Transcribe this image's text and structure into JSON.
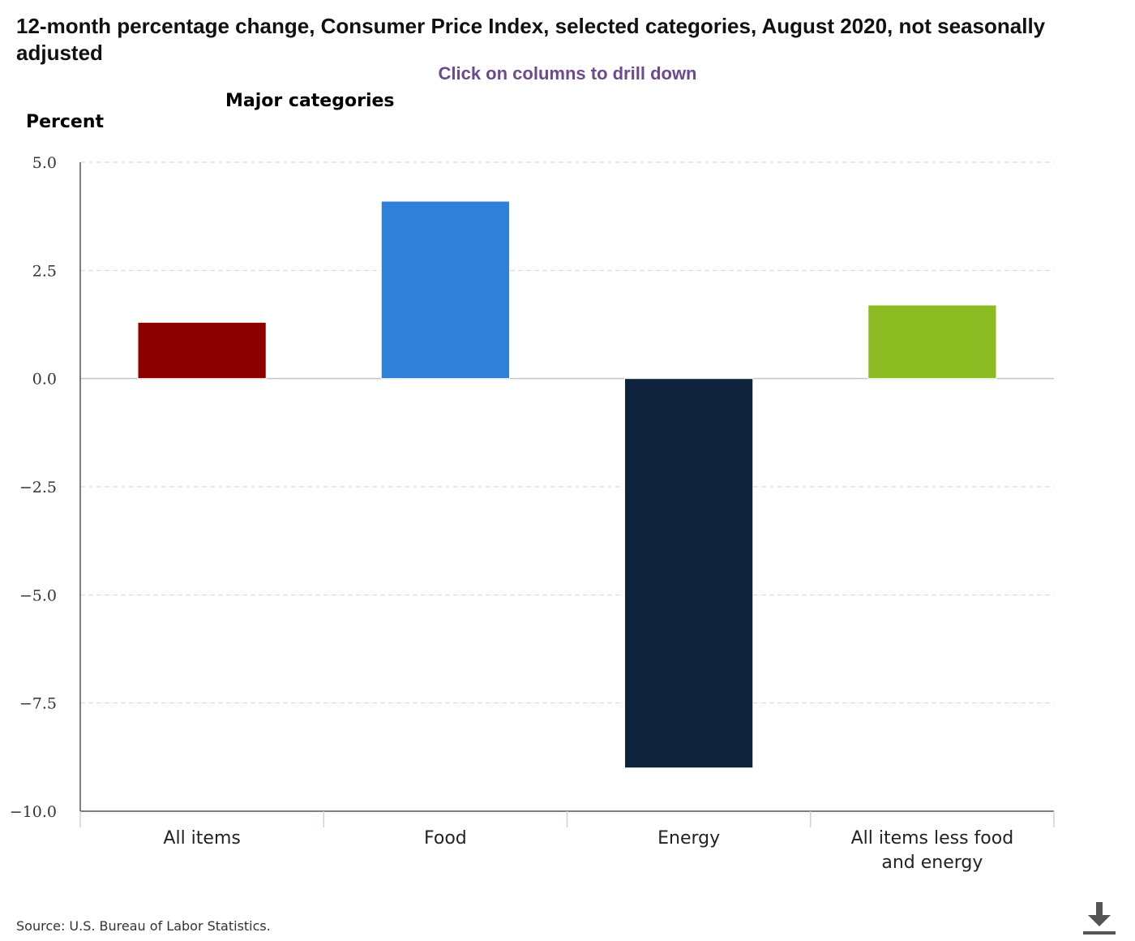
{
  "page": {
    "title": "12-month percentage change, Consumer Price Index, selected categories, August 2020, not seasonally adjusted",
    "subtitle": "Click on columns to drill down",
    "panel_title": "Major categories",
    "source": "Source: U.S. Bureau of Labor Statistics.",
    "download_icon": "download-icon"
  },
  "chart_data": {
    "type": "bar",
    "title": "12-month percentage change, Consumer Price Index, selected categories, August 2020, not seasonally adjusted",
    "subtitle": "Click on columns to drill down",
    "xlabel": "",
    "ylabel": "Percent",
    "categories": [
      "All items",
      "Food",
      "Energy",
      "All items less food and energy"
    ],
    "values": [
      1.3,
      4.1,
      -9.0,
      1.7
    ],
    "colors": [
      "#8b0000",
      "#2f80d8",
      "#0f233c",
      "#8cbc22"
    ],
    "ylim": [
      -10.0,
      5.0
    ],
    "yticks": [
      5.0,
      2.5,
      0.0,
      -2.5,
      -5.0,
      -7.5,
      -10.0
    ],
    "ytick_labels": [
      "5.0",
      "2.5",
      "0.0",
      "−2.5",
      "−5.0",
      "−7.5",
      "−10.0"
    ],
    "grid": true,
    "legend": "none"
  }
}
